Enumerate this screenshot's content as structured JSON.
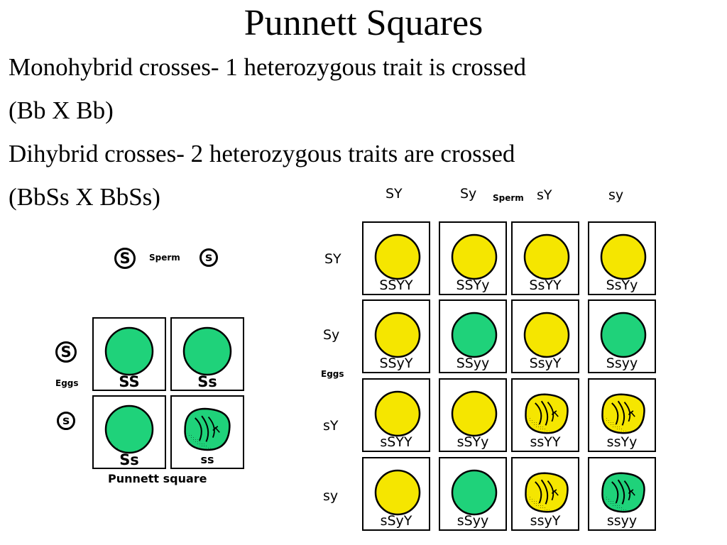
{
  "title": "Punnett Squares",
  "bullets": [
    "Monohybrid crosses- 1 heterozygous trait is crossed",
    "(Bb X Bb)",
    "Dihybrid crosses- 2 heterozygous traits are crossed",
    "(BbSs X BbSs)"
  ],
  "monohybrid": {
    "sperm_label": "Sperm",
    "eggs_label": "Eggs",
    "caption": "Punnett square",
    "sperm_alleles": [
      "S",
      "s"
    ],
    "egg_alleles": [
      "S",
      "s"
    ],
    "cells": [
      [
        "SS",
        "Ss"
      ],
      [
        "Ss",
        "ss"
      ]
    ],
    "phenotypes": [
      [
        "green-round",
        "green-round"
      ],
      [
        "green-round",
        "green-wrinkled"
      ]
    ]
  },
  "dihybrid": {
    "sperm_label": "Sperm",
    "eggs_label": "Eggs",
    "sperm_alleles": [
      "SY",
      "Sy",
      "sY",
      "sy"
    ],
    "egg_alleles": [
      "SY",
      "Sy",
      "sY",
      "sy"
    ],
    "cells": [
      [
        "SSYY",
        "SSYy",
        "SsYY",
        "SsYy"
      ],
      [
        "SSyY",
        "SSyy",
        "SsyY",
        "Ssyy"
      ],
      [
        "sSYY",
        "sSYy",
        "ssYY",
        "ssYy"
      ],
      [
        "sSyY",
        "sSyy",
        "ssyY",
        "ssyy"
      ]
    ],
    "phenotypes": [
      [
        "yellow-round",
        "yellow-round",
        "yellow-round",
        "yellow-round"
      ],
      [
        "yellow-round",
        "green-round",
        "yellow-round",
        "green-round"
      ],
      [
        "yellow-round",
        "yellow-round",
        "yellow-wrinkled",
        "yellow-wrinkled"
      ],
      [
        "yellow-round",
        "green-round",
        "yellow-wrinkled",
        "green-wrinkled"
      ]
    ]
  },
  "colors": {
    "yellow": "#f5e600",
    "green": "#1fd27a",
    "outline": "#000000"
  }
}
